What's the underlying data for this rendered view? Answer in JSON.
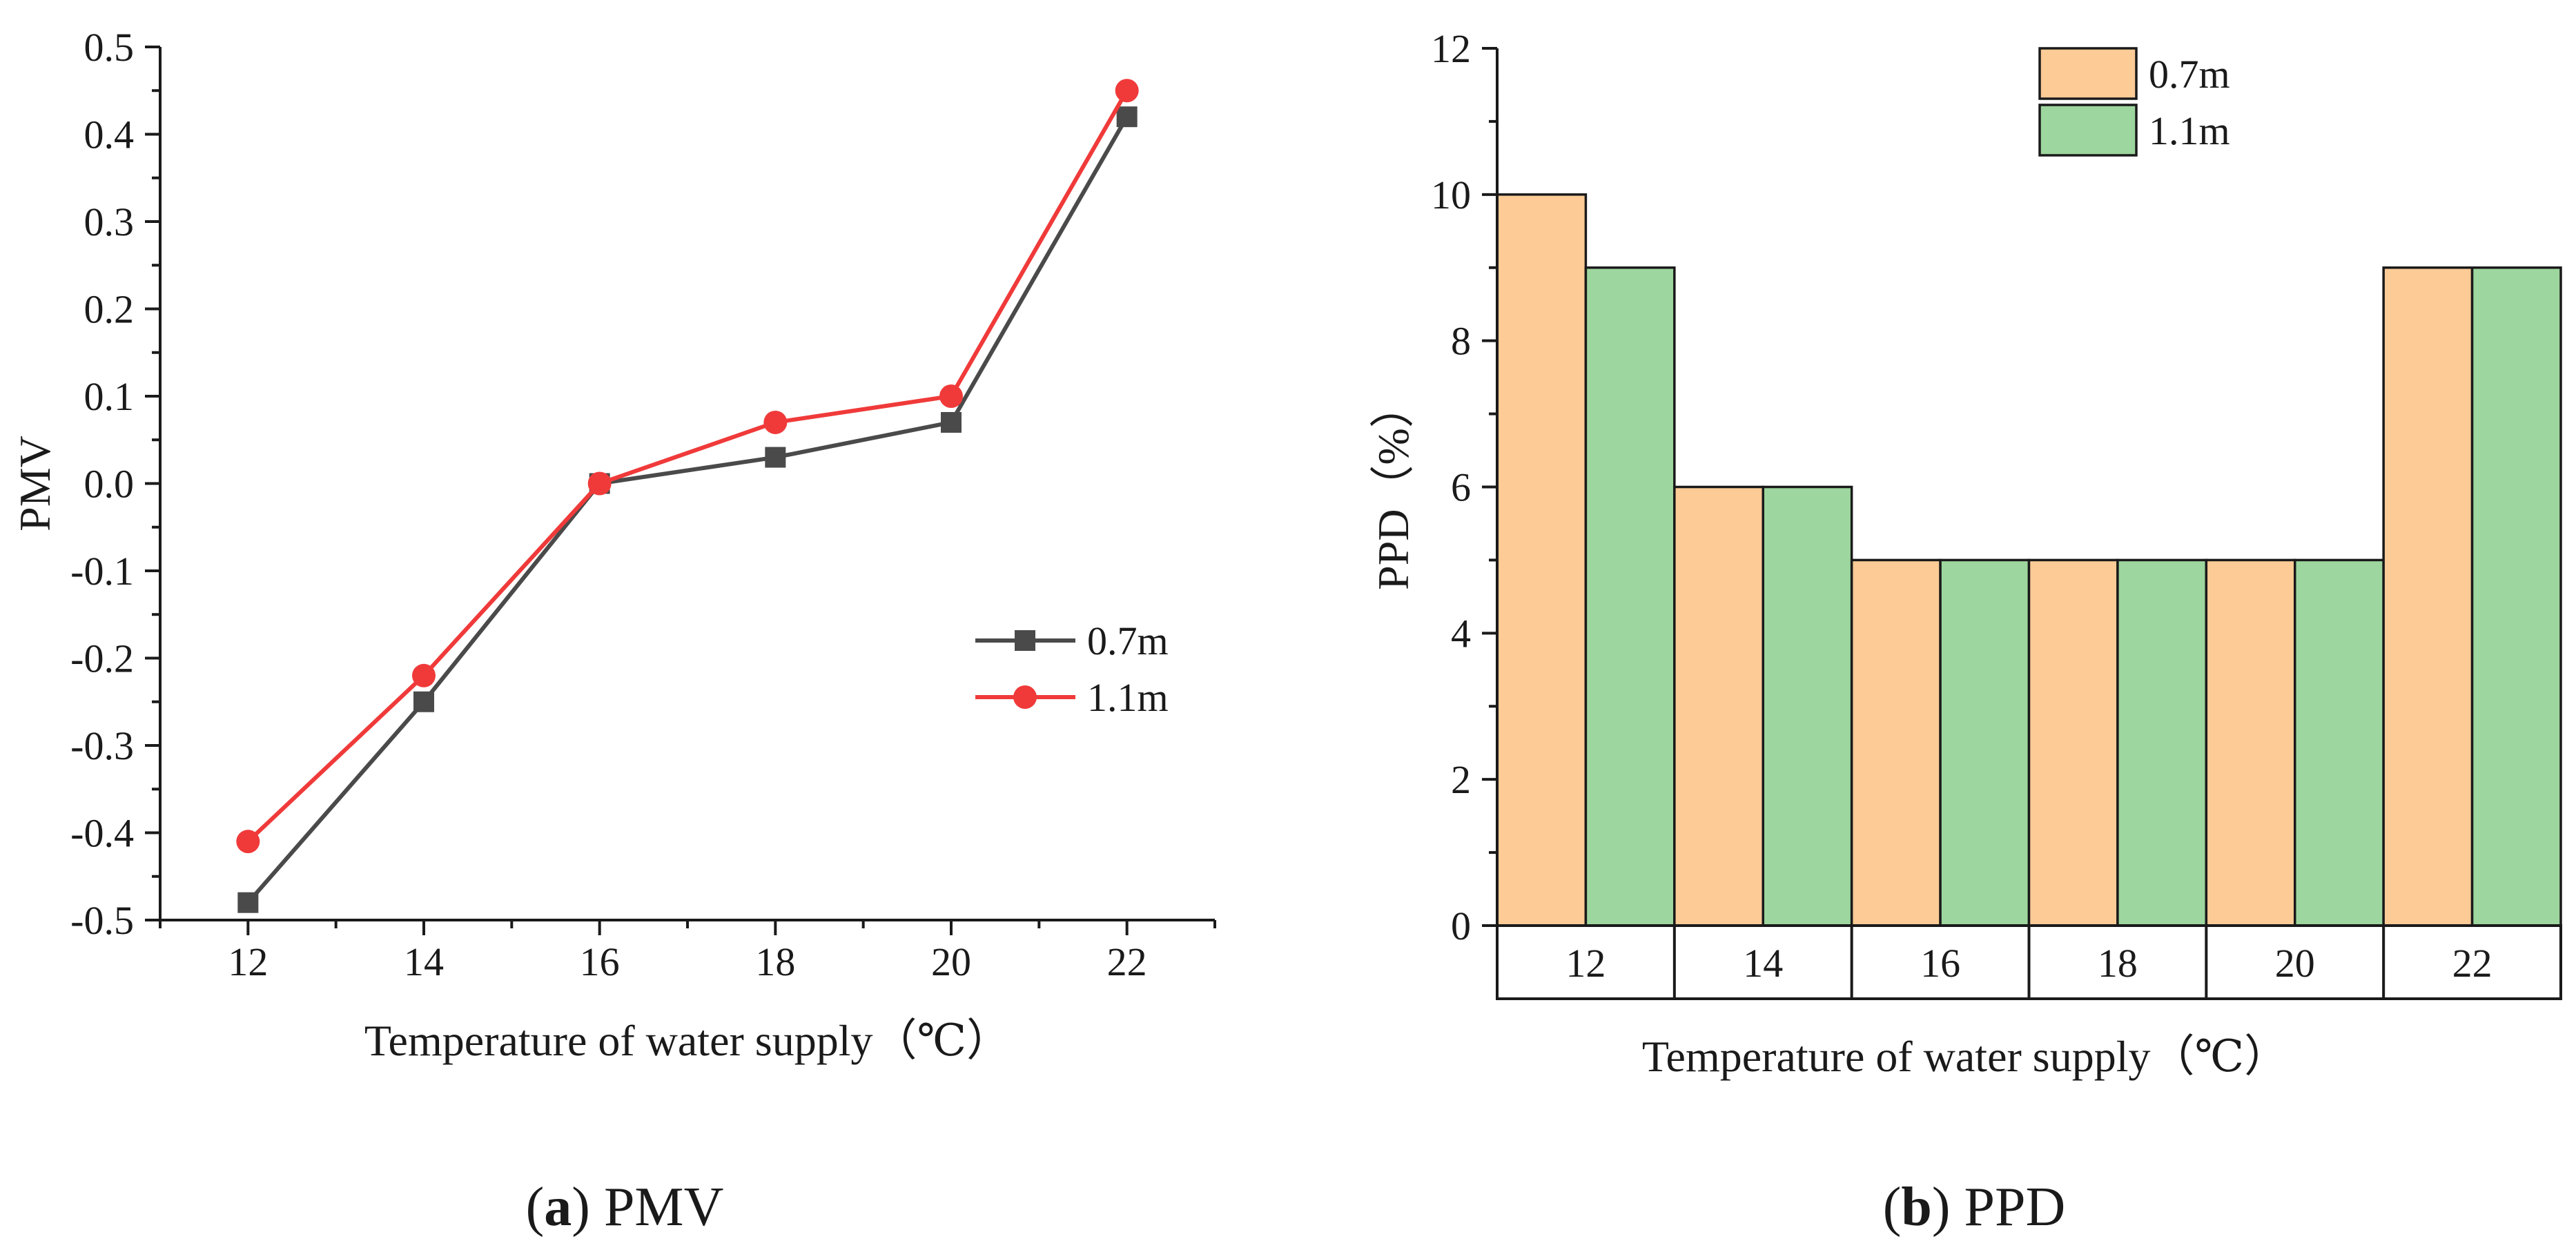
{
  "chart_data": [
    {
      "type": "line",
      "title": "",
      "xlabel": "Temperature of water supply（℃）",
      "ylabel": "PMV",
      "x": [
        12,
        14,
        16,
        18,
        20,
        22
      ],
      "x_tick_labels": [
        "12",
        "14",
        "16",
        "18",
        "20",
        "22"
      ],
      "y_tick_labels": [
        "-0.5",
        "-0.4",
        "-0.3",
        "-0.2",
        "-0.1",
        "0.0",
        "0.1",
        "0.2",
        "0.3",
        "0.4",
        "0.5"
      ],
      "xlim": [
        11,
        23
      ],
      "ylim": [
        -0.5,
        0.5
      ],
      "grid": false,
      "legend_position": "center-right",
      "series": [
        {
          "name": "0.7m",
          "marker": "square",
          "color": "#4a4a4a",
          "values": [
            -0.48,
            -0.25,
            0.0,
            0.03,
            0.07,
            0.42
          ]
        },
        {
          "name": "1.1m",
          "marker": "circle",
          "color": "#f03a3a",
          "values": [
            -0.41,
            -0.22,
            0.0,
            0.07,
            0.1,
            0.45
          ]
        }
      ],
      "caption": {
        "letter": "a",
        "text": "PMV"
      }
    },
    {
      "type": "bar",
      "title": "",
      "xlabel": "Temperature of water supply（℃）",
      "ylabel": "PPD（%）",
      "categories": [
        "12",
        "14",
        "16",
        "18",
        "20",
        "22"
      ],
      "y_tick_labels": [
        "0",
        "2",
        "4",
        "6",
        "8",
        "10",
        "12"
      ],
      "ylim": [
        0,
        12
      ],
      "grid": false,
      "legend_position": "top-center",
      "series": [
        {
          "name": "0.7m",
          "color": "#fccb96",
          "values": [
            10,
            6,
            5,
            5,
            5,
            9
          ]
        },
        {
          "name": "1.1m",
          "color": "#9dd69e",
          "values": [
            9,
            6,
            5,
            5,
            5,
            9
          ]
        }
      ],
      "caption": {
        "letter": "b",
        "text": "PPD"
      }
    }
  ]
}
